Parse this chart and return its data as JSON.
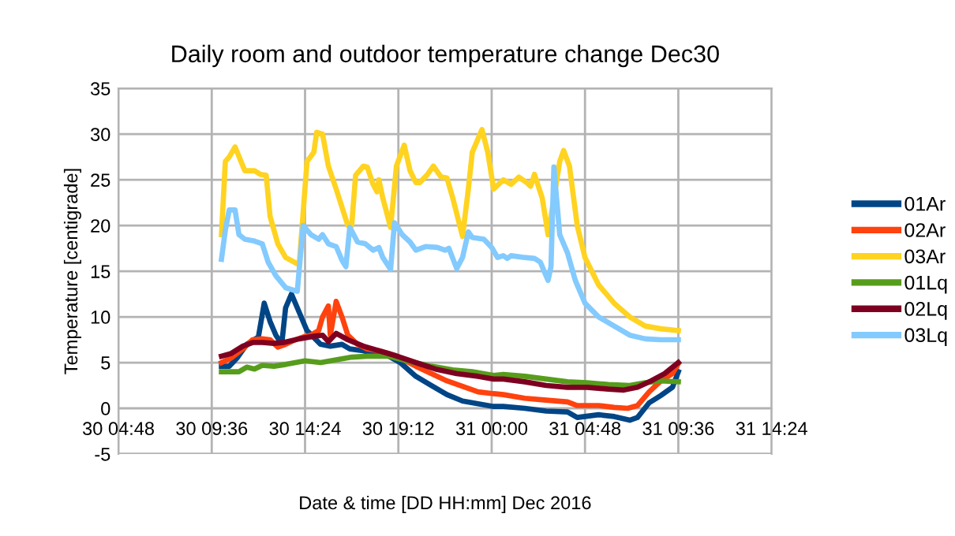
{
  "chart_data": {
    "type": "line",
    "title": "Daily room and outdoor temperature change Dec30",
    "xlabel": "Date & time [DD HH:mm] Dec 2016",
    "ylabel": "Temperature [centigrade]",
    "xlim": [
      "2016-12-30T04:48",
      "2016-12-31T14:24"
    ],
    "ylim": [
      -5,
      35
    ],
    "xticks": [
      {
        "value": "2016-12-30T04:48",
        "label": "30 04:48"
      },
      {
        "value": "2016-12-30T09:36",
        "label": "30 09:36"
      },
      {
        "value": "2016-12-30T14:24",
        "label": "30 14:24"
      },
      {
        "value": "2016-12-30T19:12",
        "label": "30 19:12"
      },
      {
        "value": "2016-12-31T00:00",
        "label": "31 00:00"
      },
      {
        "value": "2016-12-31T04:48",
        "label": "31 04:48"
      },
      {
        "value": "2016-12-31T09:36",
        "label": "31 09:36"
      },
      {
        "value": "2016-12-31T14:24",
        "label": "31 14:24"
      }
    ],
    "yticks": [
      -5,
      0,
      5,
      10,
      15,
      20,
      25,
      30,
      35
    ],
    "grid": true,
    "legend": "right",
    "marker": "none",
    "line_style": "solid",
    "series": [
      {
        "name": "01Ar",
        "color": "#004586",
        "x": [
          "2016-12-30T10:06",
          "2016-12-30T10:30",
          "2016-12-30T10:54",
          "2016-12-30T11:24",
          "2016-12-30T12:00",
          "2016-12-30T12:18",
          "2016-12-30T12:36",
          "2016-12-30T12:54",
          "2016-12-30T13:12",
          "2016-12-30T13:24",
          "2016-12-30T13:42",
          "2016-12-30T14:06",
          "2016-12-30T14:30",
          "2016-12-30T15:12",
          "2016-12-30T15:42",
          "2016-12-30T16:18",
          "2016-12-30T16:42",
          "2016-12-30T17:24",
          "2016-12-30T17:54",
          "2016-12-30T18:42",
          "2016-12-30T19:18",
          "2016-12-30T20:06",
          "2016-12-30T20:54",
          "2016-12-30T21:42",
          "2016-12-30T22:30",
          "2016-12-30T23:18",
          "2016-12-31T00:06",
          "2016-12-31T00:36",
          "2016-12-31T01:42",
          "2016-12-31T02:48",
          "2016-12-31T03:54",
          "2016-12-31T04:24",
          "2016-12-31T05:30",
          "2016-12-31T06:18",
          "2016-12-31T07:06",
          "2016-12-31T07:30",
          "2016-12-31T08:06",
          "2016-12-31T08:42",
          "2016-12-31T09:18",
          "2016-12-31T09:36"
        ],
        "values": [
          4.6,
          4.6,
          5.5,
          7,
          7.8,
          11.5,
          9.5,
          8,
          7,
          11,
          12.5,
          10.5,
          8.5,
          7,
          6.8,
          7,
          6.5,
          6.3,
          6,
          5.7,
          5,
          3.5,
          2.5,
          1.5,
          0.8,
          0.5,
          0.2,
          0.2,
          0,
          -0.3,
          -0.4,
          -1,
          -0.7,
          -0.9,
          -1.3,
          -1,
          0.6,
          1.4,
          2.3,
          4
        ]
      },
      {
        "name": "02Ar",
        "color": "#ff420e",
        "x": [
          "2016-12-30T10:06",
          "2016-12-30T10:36",
          "2016-12-30T11:12",
          "2016-12-30T11:42",
          "2016-12-30T12:12",
          "2016-12-30T12:36",
          "2016-12-30T13:00",
          "2016-12-30T13:24",
          "2016-12-30T13:54",
          "2016-12-30T14:18",
          "2016-12-30T14:42",
          "2016-12-30T15:06",
          "2016-12-30T15:18",
          "2016-12-30T15:36",
          "2016-12-30T15:42",
          "2016-12-30T16:00",
          "2016-12-30T16:18",
          "2016-12-30T16:36",
          "2016-12-30T17:06",
          "2016-12-30T17:36",
          "2016-12-30T18:12",
          "2016-12-30T18:42",
          "2016-12-30T19:18",
          "2016-12-30T20:06",
          "2016-12-30T20:54",
          "2016-12-30T21:42",
          "2016-12-30T22:30",
          "2016-12-30T23:18",
          "2016-12-31T00:06",
          "2016-12-31T00:36",
          "2016-12-31T01:42",
          "2016-12-31T02:48",
          "2016-12-31T03:54",
          "2016-12-31T04:24",
          "2016-12-31T05:30",
          "2016-12-31T06:18",
          "2016-12-31T07:00",
          "2016-12-31T07:30",
          "2016-12-31T08:06",
          "2016-12-31T08:42",
          "2016-12-31T09:18",
          "2016-12-31T09:36"
        ],
        "values": [
          5,
          5.5,
          6.5,
          7.5,
          7.6,
          7.5,
          6.7,
          7,
          7.5,
          7.8,
          8,
          8.5,
          10,
          11.2,
          8,
          11.7,
          10,
          8,
          7,
          6.5,
          6.3,
          6,
          5.5,
          4.6,
          3.8,
          3,
          2.4,
          1.8,
          1.6,
          1.5,
          1.1,
          0.9,
          0.7,
          0.3,
          0.3,
          0.1,
          0,
          0.3,
          1.8,
          3,
          3.8,
          4.9
        ]
      },
      {
        "name": "03Ar",
        "color": "#ffd320",
        "x": [
          "2016-12-30T10:06",
          "2016-12-30T10:18",
          "2016-12-30T10:30",
          "2016-12-30T10:48",
          "2016-12-30T11:18",
          "2016-12-30T11:48",
          "2016-12-30T12:06",
          "2016-12-30T12:24",
          "2016-12-30T12:36",
          "2016-12-30T13:00",
          "2016-12-30T13:24",
          "2016-12-30T14:06",
          "2016-12-30T14:30",
          "2016-12-30T14:51",
          "2016-12-30T15:00",
          "2016-12-30T15:18",
          "2016-12-30T15:36",
          "2016-12-30T16:00",
          "2016-12-30T16:36",
          "2016-12-30T16:48",
          "2016-12-30T17:00",
          "2016-12-30T17:24",
          "2016-12-30T17:36",
          "2016-12-30T17:54",
          "2016-12-30T18:06",
          "2016-12-30T18:12",
          "2016-12-30T18:24",
          "2016-12-30T18:48",
          "2016-12-30T19:06",
          "2016-12-30T19:30",
          "2016-12-30T19:48",
          "2016-12-30T20:06",
          "2016-12-30T20:18",
          "2016-12-30T20:42",
          "2016-12-30T21:00",
          "2016-12-30T21:24",
          "2016-12-30T21:42",
          "2016-12-30T22:00",
          "2016-12-30T22:30",
          "2016-12-30T22:48",
          "2016-12-30T23:00",
          "2016-12-30T23:30",
          "2016-12-30T23:48",
          "2016-12-31T00:06",
          "2016-12-31T00:36",
          "2016-12-31T01:00",
          "2016-12-31T01:24",
          "2016-12-31T01:48",
          "2016-12-31T02:00",
          "2016-12-31T02:12",
          "2016-12-31T02:36",
          "2016-12-31T02:54",
          "2016-12-31T03:03",
          "2016-12-31T03:30",
          "2016-12-31T03:42",
          "2016-12-31T04:00",
          "2016-12-31T04:24",
          "2016-12-31T04:48",
          "2016-12-31T05:30",
          "2016-12-31T06:18",
          "2016-12-31T07:06",
          "2016-12-31T07:54",
          "2016-12-31T08:42",
          "2016-12-31T09:36"
        ],
        "values": [
          19,
          27,
          27.5,
          28.6,
          26,
          26,
          25.6,
          25.5,
          21,
          18,
          16.5,
          15.7,
          27,
          28,
          30.2,
          30,
          26.5,
          24,
          20,
          20,
          25.5,
          26.5,
          26.4,
          24.5,
          23.7,
          25,
          23,
          19.8,
          26.5,
          28.8,
          26,
          24.7,
          24.7,
          25.6,
          26.5,
          25.3,
          25.2,
          23,
          18.8,
          24,
          28,
          30.5,
          28,
          24,
          25,
          24.5,
          25.3,
          24.7,
          24.3,
          25.6,
          23,
          19,
          21,
          27,
          28.2,
          26.5,
          20,
          16.5,
          13.5,
          11.5,
          10,
          9,
          8.7,
          8.5
        ]
      },
      {
        "name": "01Lq",
        "color": "#579d1c",
        "x": [
          "2016-12-30T10:06",
          "2016-12-30T11:00",
          "2016-12-30T11:24",
          "2016-12-30T11:48",
          "2016-12-30T12:12",
          "2016-12-30T12:48",
          "2016-12-30T13:24",
          "2016-12-30T14:24",
          "2016-12-30T15:12",
          "2016-12-30T16:00",
          "2016-12-30T16:48",
          "2016-12-30T17:36",
          "2016-12-30T18:42",
          "2016-12-30T19:48",
          "2016-12-30T20:54",
          "2016-12-30T22:00",
          "2016-12-30T23:00",
          "2016-12-31T00:06",
          "2016-12-31T00:36",
          "2016-12-31T01:42",
          "2016-12-31T02:48",
          "2016-12-31T03:54",
          "2016-12-31T04:54",
          "2016-12-31T06:00",
          "2016-12-31T07:06",
          "2016-12-31T07:54",
          "2016-12-31T08:42",
          "2016-12-31T09:36"
        ],
        "values": [
          4,
          4,
          4.5,
          4.3,
          4.7,
          4.6,
          4.8,
          5.2,
          5,
          5.3,
          5.6,
          5.7,
          5.7,
          5.1,
          4.6,
          4.2,
          4,
          3.6,
          3.7,
          3.5,
          3.2,
          2.9,
          2.8,
          2.6,
          2.5,
          2.8,
          3,
          2.9
        ]
      },
      {
        "name": "02Lq",
        "color": "#7e0021",
        "x": [
          "2016-12-30T10:06",
          "2016-12-30T10:36",
          "2016-12-30T11:12",
          "2016-12-30T11:42",
          "2016-12-30T12:12",
          "2016-12-30T12:48",
          "2016-12-30T13:18",
          "2016-12-30T14:06",
          "2016-12-30T14:54",
          "2016-12-30T15:18",
          "2016-12-30T15:36",
          "2016-12-30T16:00",
          "2016-12-30T16:36",
          "2016-12-30T17:24",
          "2016-12-30T18:12",
          "2016-12-30T19:00",
          "2016-12-30T20:06",
          "2016-12-30T21:06",
          "2016-12-30T22:12",
          "2016-12-30T23:18",
          "2016-12-31T00:06",
          "2016-12-31T00:36",
          "2016-12-31T01:42",
          "2016-12-31T02:48",
          "2016-12-31T03:54",
          "2016-12-31T04:54",
          "2016-12-31T06:00",
          "2016-12-31T06:48",
          "2016-12-31T07:30",
          "2016-12-31T08:12",
          "2016-12-31T08:54",
          "2016-12-31T09:36"
        ],
        "values": [
          5.7,
          6,
          6.8,
          7.2,
          7.2,
          7.1,
          7.2,
          7.6,
          7.9,
          8,
          7.3,
          8.2,
          7.5,
          6.8,
          6.3,
          5.8,
          5,
          4.3,
          3.8,
          3.5,
          3.2,
          3.2,
          2.9,
          2.5,
          2.3,
          2.3,
          2.1,
          2,
          2.3,
          3,
          3.8,
          5
        ]
      },
      {
        "name": "03Lq",
        "color": "#83caff",
        "x": [
          "2016-12-30T10:06",
          "2016-12-30T10:18",
          "2016-12-30T10:30",
          "2016-12-30T10:48",
          "2016-12-30T11:00",
          "2016-12-30T11:18",
          "2016-12-30T11:48",
          "2016-12-30T12:12",
          "2016-12-30T12:30",
          "2016-12-30T12:54",
          "2016-12-30T13:24",
          "2016-12-30T14:00",
          "2016-12-30T14:18",
          "2016-12-30T14:42",
          "2016-12-30T15:06",
          "2016-12-30T15:18",
          "2016-12-30T15:36",
          "2016-12-30T16:00",
          "2016-12-30T16:18",
          "2016-12-30T16:30",
          "2016-12-30T16:42",
          "2016-12-30T17:06",
          "2016-12-30T17:30",
          "2016-12-30T17:54",
          "2016-12-30T18:12",
          "2016-12-30T18:24",
          "2016-12-30T18:48",
          "2016-12-30T19:00",
          "2016-12-30T19:24",
          "2016-12-30T19:48",
          "2016-12-30T20:06",
          "2016-12-30T20:36",
          "2016-12-30T21:12",
          "2016-12-30T21:36",
          "2016-12-30T21:48",
          "2016-12-30T22:12",
          "2016-12-30T22:30",
          "2016-12-30T22:48",
          "2016-12-30T23:00",
          "2016-12-30T23:36",
          "2016-12-31T00:00",
          "2016-12-31T00:18",
          "2016-12-31T00:36",
          "2016-12-31T00:48",
          "2016-12-31T01:00",
          "2016-12-31T01:42",
          "2016-12-31T02:12",
          "2016-12-31T02:30",
          "2016-12-31T02:42",
          "2016-12-31T02:54",
          "2016-12-31T03:03",
          "2016-12-31T03:12",
          "2016-12-31T03:30",
          "2016-12-31T03:54",
          "2016-12-31T04:18",
          "2016-12-31T04:48",
          "2016-12-31T05:30",
          "2016-12-31T06:18",
          "2016-12-31T07:06",
          "2016-12-31T07:54",
          "2016-12-31T08:42",
          "2016-12-31T09:36"
        ],
        "values": [
          16.3,
          19.5,
          21.7,
          21.7,
          19,
          18.5,
          18.3,
          18,
          16,
          14.5,
          13.2,
          12.8,
          20,
          19,
          18.5,
          19,
          18,
          17.7,
          16.2,
          15.5,
          19.8,
          18.2,
          18,
          17.3,
          17.6,
          16.5,
          15.2,
          20.3,
          19,
          18.2,
          17.3,
          17.7,
          17.6,
          17.3,
          17.5,
          15.3,
          16.5,
          19.3,
          18.7,
          18.5,
          17.6,
          16.5,
          16.7,
          16.4,
          16.7,
          16.5,
          16.4,
          16,
          15,
          14,
          15.5,
          26.4,
          19,
          17,
          14,
          11.5,
          10,
          9,
          8,
          7.6,
          7.5,
          7.5
        ]
      }
    ]
  }
}
